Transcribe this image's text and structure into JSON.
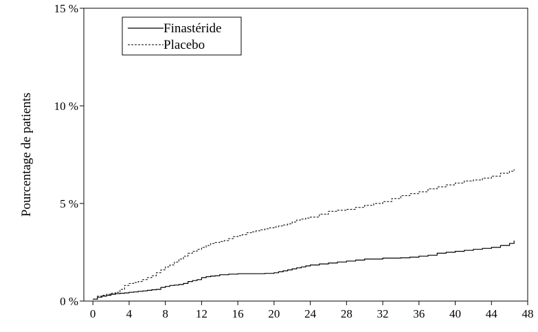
{
  "chart_data": {
    "type": "line",
    "ylabel": "Pourcentage de patients",
    "xlabel": "",
    "xlim": [
      -1,
      48
    ],
    "ylim": [
      0,
      15
    ],
    "x_ticks": [
      0,
      4,
      8,
      12,
      16,
      20,
      24,
      28,
      32,
      36,
      40,
      44,
      48
    ],
    "x_tick_labels": [
      "0",
      "4",
      "8",
      "12",
      "16",
      "20",
      "24",
      "28",
      "32",
      "36",
      "40",
      "44",
      "48"
    ],
    "y_ticks": [
      0,
      5,
      10,
      15
    ],
    "y_tick_labels": [
      "0 %",
      "5 %",
      "10 %",
      "15 %"
    ],
    "grid": false,
    "legend_position": "top-left",
    "series": [
      {
        "name": "Finastéride",
        "style": "solid",
        "color": "#000000",
        "x": [
          0,
          0.5,
          1,
          1.5,
          2,
          2.5,
          3,
          3.5,
          4,
          4.5,
          5,
          5.5,
          6,
          6.5,
          7,
          7.5,
          8,
          8.5,
          9,
          9.5,
          10,
          10.5,
          11,
          11.5,
          12,
          12.5,
          13,
          13.5,
          14,
          15,
          16,
          17,
          18,
          19,
          20,
          20.5,
          21,
          21.5,
          22,
          22.5,
          23,
          23.5,
          24,
          25,
          26,
          27,
          28,
          29,
          30,
          31,
          32,
          33,
          34,
          35,
          36,
          37,
          38,
          39,
          40,
          41,
          42,
          43,
          44,
          45,
          46,
          46.5
        ],
        "y": [
          0.1,
          0.2,
          0.25,
          0.3,
          0.35,
          0.38,
          0.4,
          0.42,
          0.45,
          0.47,
          0.5,
          0.52,
          0.55,
          0.58,
          0.6,
          0.7,
          0.75,
          0.8,
          0.82,
          0.85,
          0.9,
          1.0,
          1.05,
          1.1,
          1.2,
          1.25,
          1.28,
          1.3,
          1.35,
          1.38,
          1.4,
          1.4,
          1.4,
          1.42,
          1.45,
          1.5,
          1.55,
          1.6,
          1.65,
          1.7,
          1.75,
          1.8,
          1.85,
          1.9,
          1.95,
          2.0,
          2.05,
          2.1,
          2.15,
          2.15,
          2.2,
          2.2,
          2.22,
          2.25,
          2.3,
          2.35,
          2.45,
          2.5,
          2.55,
          2.6,
          2.65,
          2.7,
          2.75,
          2.85,
          2.95,
          3.1
        ]
      },
      {
        "name": "Placebo",
        "style": "dashed",
        "color": "#000000",
        "x": [
          0,
          0.5,
          1,
          1.5,
          2,
          2.5,
          3,
          3.5,
          4,
          4.5,
          5,
          5.5,
          6,
          6.5,
          7,
          7.5,
          8,
          8.5,
          9,
          9.5,
          10,
          10.5,
          11,
          11.5,
          12,
          12.5,
          13,
          13.5,
          14,
          14.5,
          15,
          15.5,
          16,
          16.5,
          17,
          17.5,
          18,
          18.5,
          19,
          19.5,
          20,
          20.5,
          21,
          21.5,
          22,
          22.5,
          23,
          23.5,
          24,
          25,
          26,
          27,
          28,
          29,
          30,
          31,
          32,
          33,
          34,
          35,
          36,
          37,
          38,
          39,
          40,
          41,
          42,
          43,
          44,
          45,
          46,
          46.5
        ],
        "y": [
          0.1,
          0.25,
          0.3,
          0.35,
          0.4,
          0.45,
          0.6,
          0.8,
          0.9,
          0.95,
          1.0,
          1.1,
          1.2,
          1.3,
          1.45,
          1.6,
          1.75,
          1.85,
          2.0,
          2.15,
          2.3,
          2.45,
          2.55,
          2.65,
          2.75,
          2.85,
          2.95,
          3.0,
          3.05,
          3.1,
          3.2,
          3.3,
          3.35,
          3.4,
          3.5,
          3.55,
          3.6,
          3.65,
          3.7,
          3.75,
          3.8,
          3.85,
          3.9,
          3.95,
          4.05,
          4.15,
          4.2,
          4.25,
          4.3,
          4.45,
          4.6,
          4.65,
          4.7,
          4.8,
          4.9,
          5.0,
          5.1,
          5.25,
          5.4,
          5.5,
          5.6,
          5.75,
          5.85,
          5.95,
          6.05,
          6.15,
          6.2,
          6.3,
          6.4,
          6.55,
          6.65,
          6.75
        ]
      }
    ]
  }
}
